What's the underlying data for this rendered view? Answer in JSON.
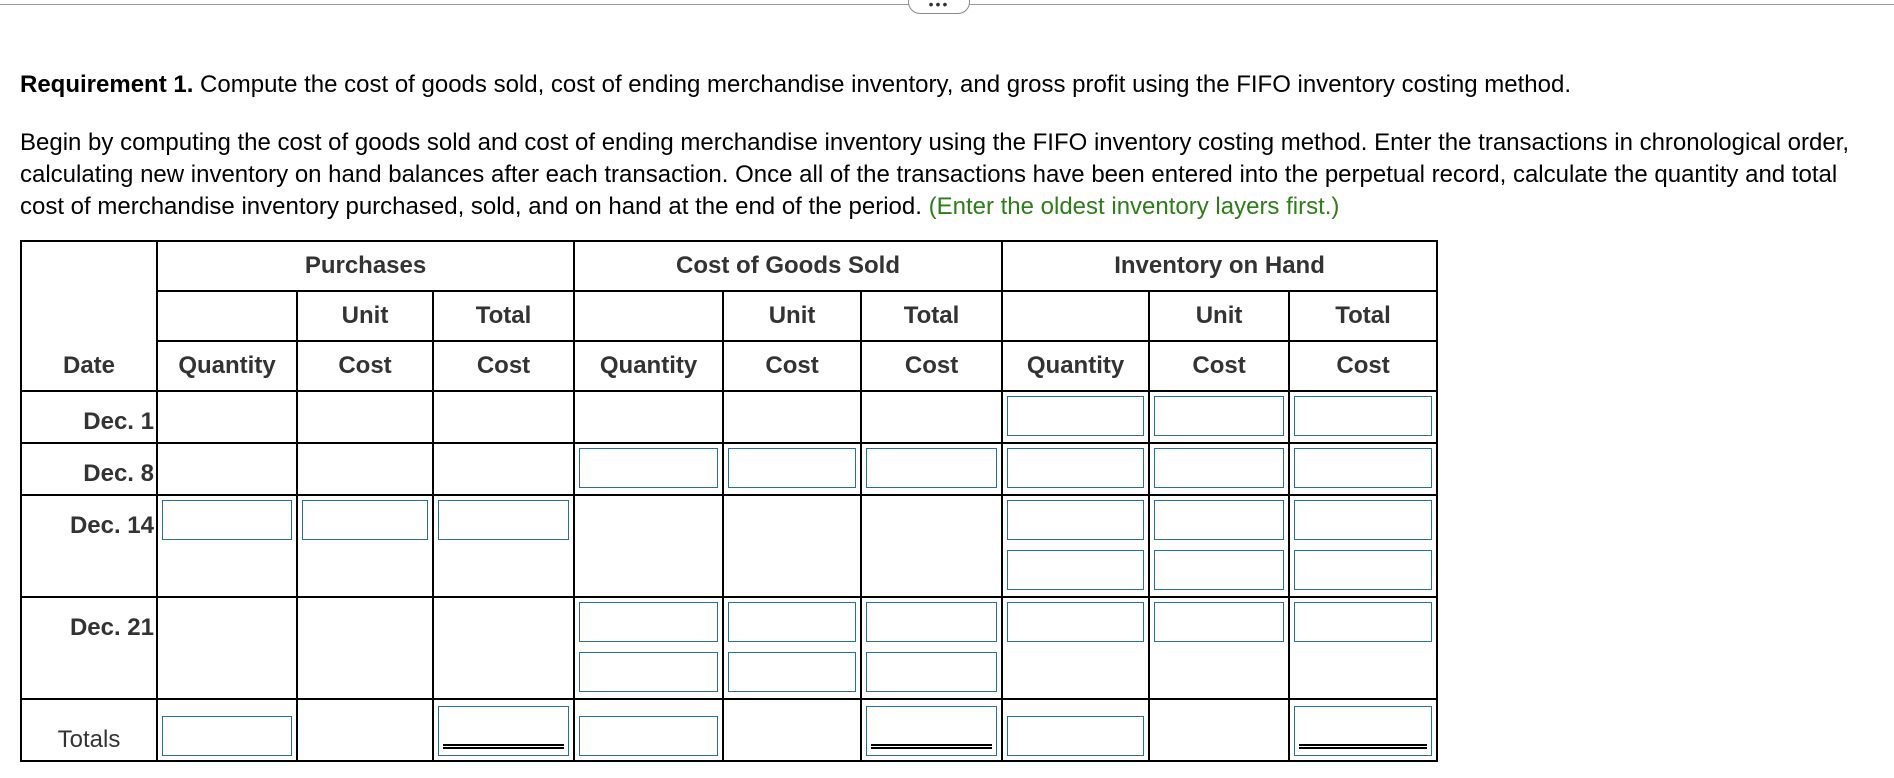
{
  "requirement": {
    "label": "Requirement 1.",
    "text": " Compute the cost of goods sold, cost of ending merchandise inventory, and gross profit using the FIFO inventory costing method."
  },
  "instructions": {
    "text": "Begin by computing the cost of goods sold and cost of ending merchandise inventory using the FIFO inventory costing method. Enter the transactions in chronological order, calculating new inventory on hand balances after each transaction. Once all of the transactions have been entered into the perpetual record, calculate the quantity and total cost of merchandise inventory purchased, sold, and on hand at the end of the period. ",
    "hint": "(Enter the oldest inventory layers first.)"
  },
  "toolbar": {
    "expand_label": "•••"
  },
  "table": {
    "groups": [
      "Purchases",
      "Cost of Goods Sold",
      "Inventory on Hand"
    ],
    "date_header": "Date",
    "sub_top": [
      "Unit",
      "Total"
    ],
    "sub_bottom": [
      "Quantity",
      "Cost",
      "Cost"
    ],
    "rows": [
      "Dec. 1",
      "Dec. 8",
      "Dec. 14",
      "Dec. 21"
    ],
    "totals_label": "Totals"
  }
}
